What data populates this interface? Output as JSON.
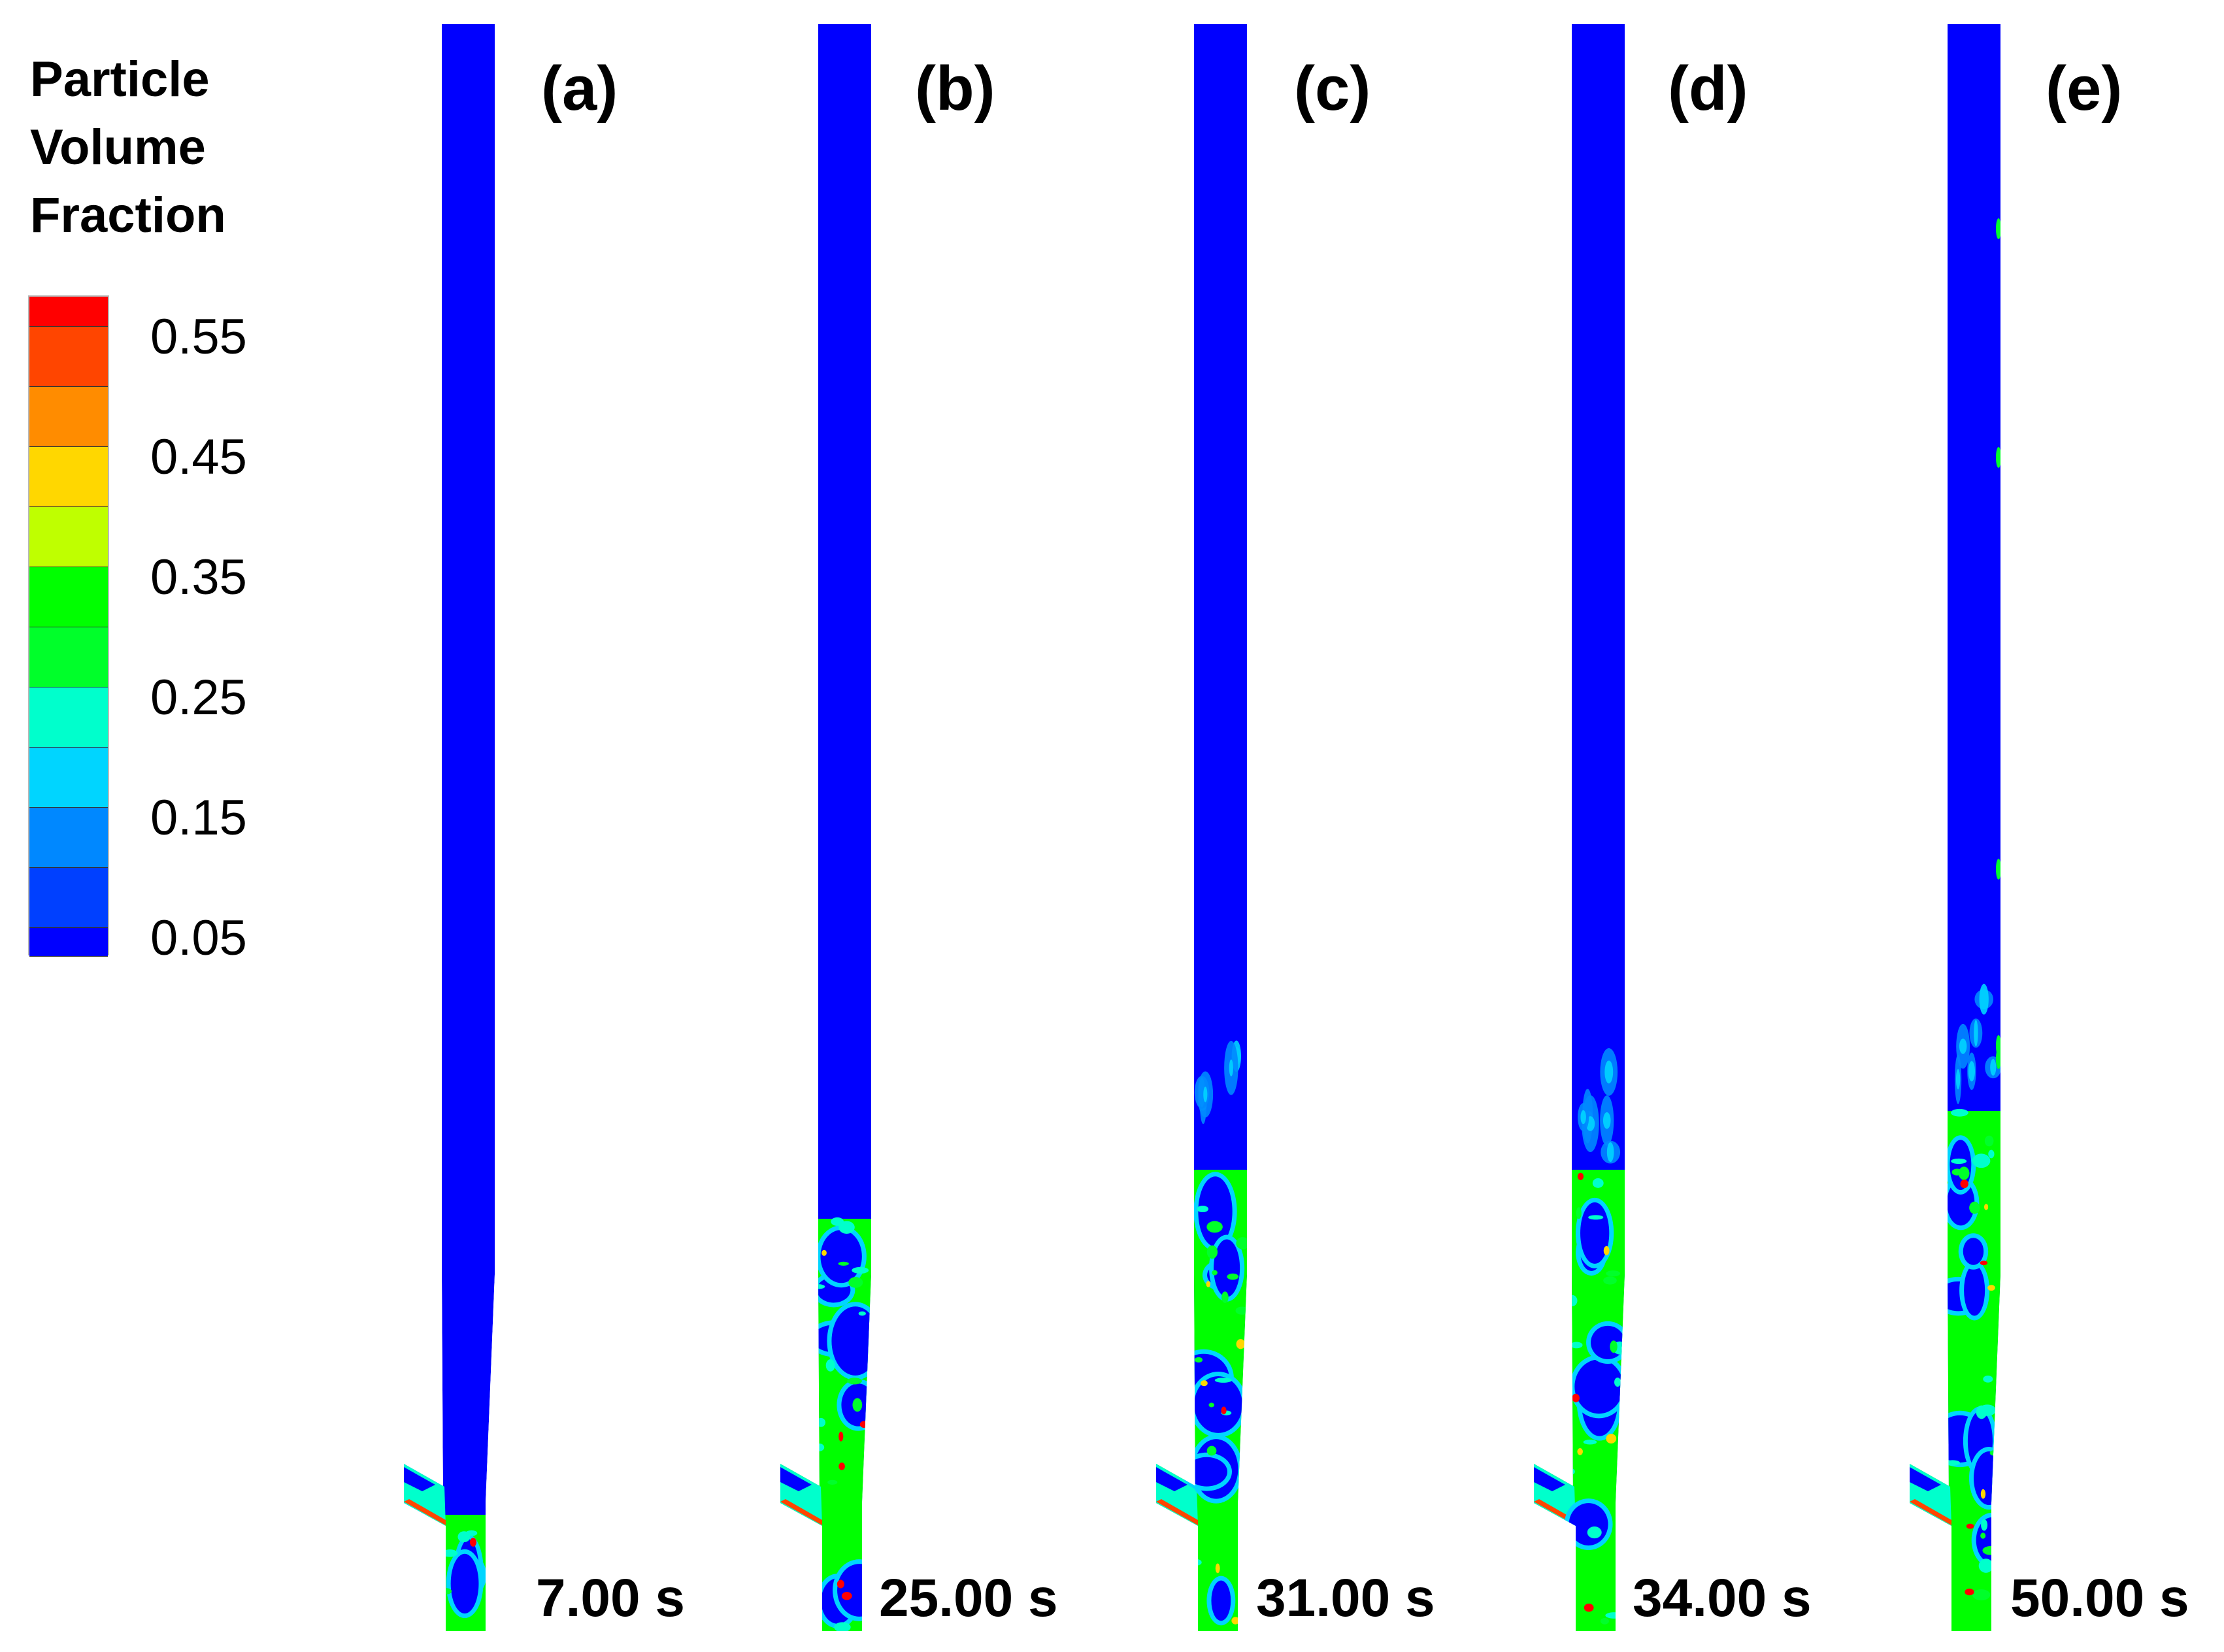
{
  "legend": {
    "title_lines": [
      "Particle",
      "Volume",
      "Fraction"
    ],
    "ticks": [
      "0.55",
      "0.45",
      "0.35",
      "0.25",
      "0.15",
      "0.05"
    ],
    "colors": [
      "#ff0000",
      "#ff4500",
      "#ff8c00",
      "#ffd700",
      "#bfff00",
      "#00ff00",
      "#00ff2a",
      "#00ffcc",
      "#00d5ff",
      "#0088ff",
      "#0040ff",
      "#0000ff"
    ]
  },
  "panels": [
    {
      "label": "(a)",
      "time": "7.00 s"
    },
    {
      "label": "(b)",
      "time": "25.00 s"
    },
    {
      "label": "(c)",
      "time": "31.00 s"
    },
    {
      "label": "(d)",
      "time": "34.00 s"
    },
    {
      "label": "(e)",
      "time": "50.00 s"
    }
  ],
  "chart_data": {
    "type": "heatmap",
    "title": "Particle Volume Fraction contours in riser at successive times",
    "colorbar": {
      "label": "Particle Volume Fraction",
      "ticks": [
        0.05,
        0.15,
        0.25,
        0.35,
        0.45,
        0.55
      ],
      "range": [
        0.0,
        0.6
      ],
      "colors_low_to_high": [
        "#0000ff",
        "#0040ff",
        "#0088ff",
        "#00d5ff",
        "#00ffcc",
        "#00ff2a",
        "#00ff00",
        "#bfff00",
        "#ffd700",
        "#ff8c00",
        "#ff4500",
        "#ff0000"
      ]
    },
    "panels": [
      {
        "label": "(a)",
        "time_s": 7.0,
        "bed_top_fraction_of_height": 0.07,
        "description": "dense region only near inlet at bottom"
      },
      {
        "label": "(b)",
        "time_s": 25.0,
        "bed_top_fraction_of_height": 0.24,
        "description": "bed expanded with sharp upper interface"
      },
      {
        "label": "(c)",
        "time_s": 31.0,
        "bed_top_fraction_of_height": 0.28,
        "description": "bed with diffuse top and bubbles"
      },
      {
        "label": "(d)",
        "time_s": 34.0,
        "bed_top_fraction_of_height": 0.28,
        "description": "bed with diffuse top and bubbles"
      },
      {
        "label": "(e)",
        "time_s": 50.0,
        "bed_top_fraction_of_height": 0.32,
        "description": "developed bed with particle streaks along wall"
      }
    ],
    "background_value": 0.05
  }
}
